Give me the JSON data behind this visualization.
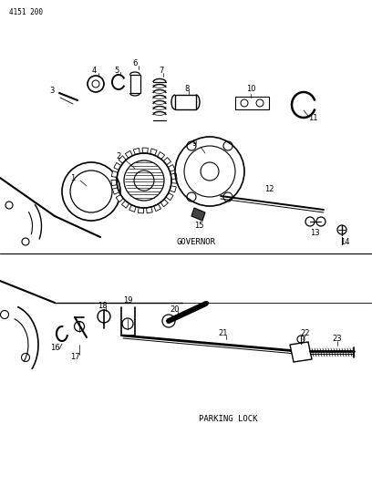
{
  "header": "4151 200",
  "bg_color": "#ffffff",
  "section1_label": "GOVERNOR",
  "section2_label": "PARKING LOCK",
  "fig_width": 4.08,
  "fig_height": 5.33,
  "dpi": 100
}
